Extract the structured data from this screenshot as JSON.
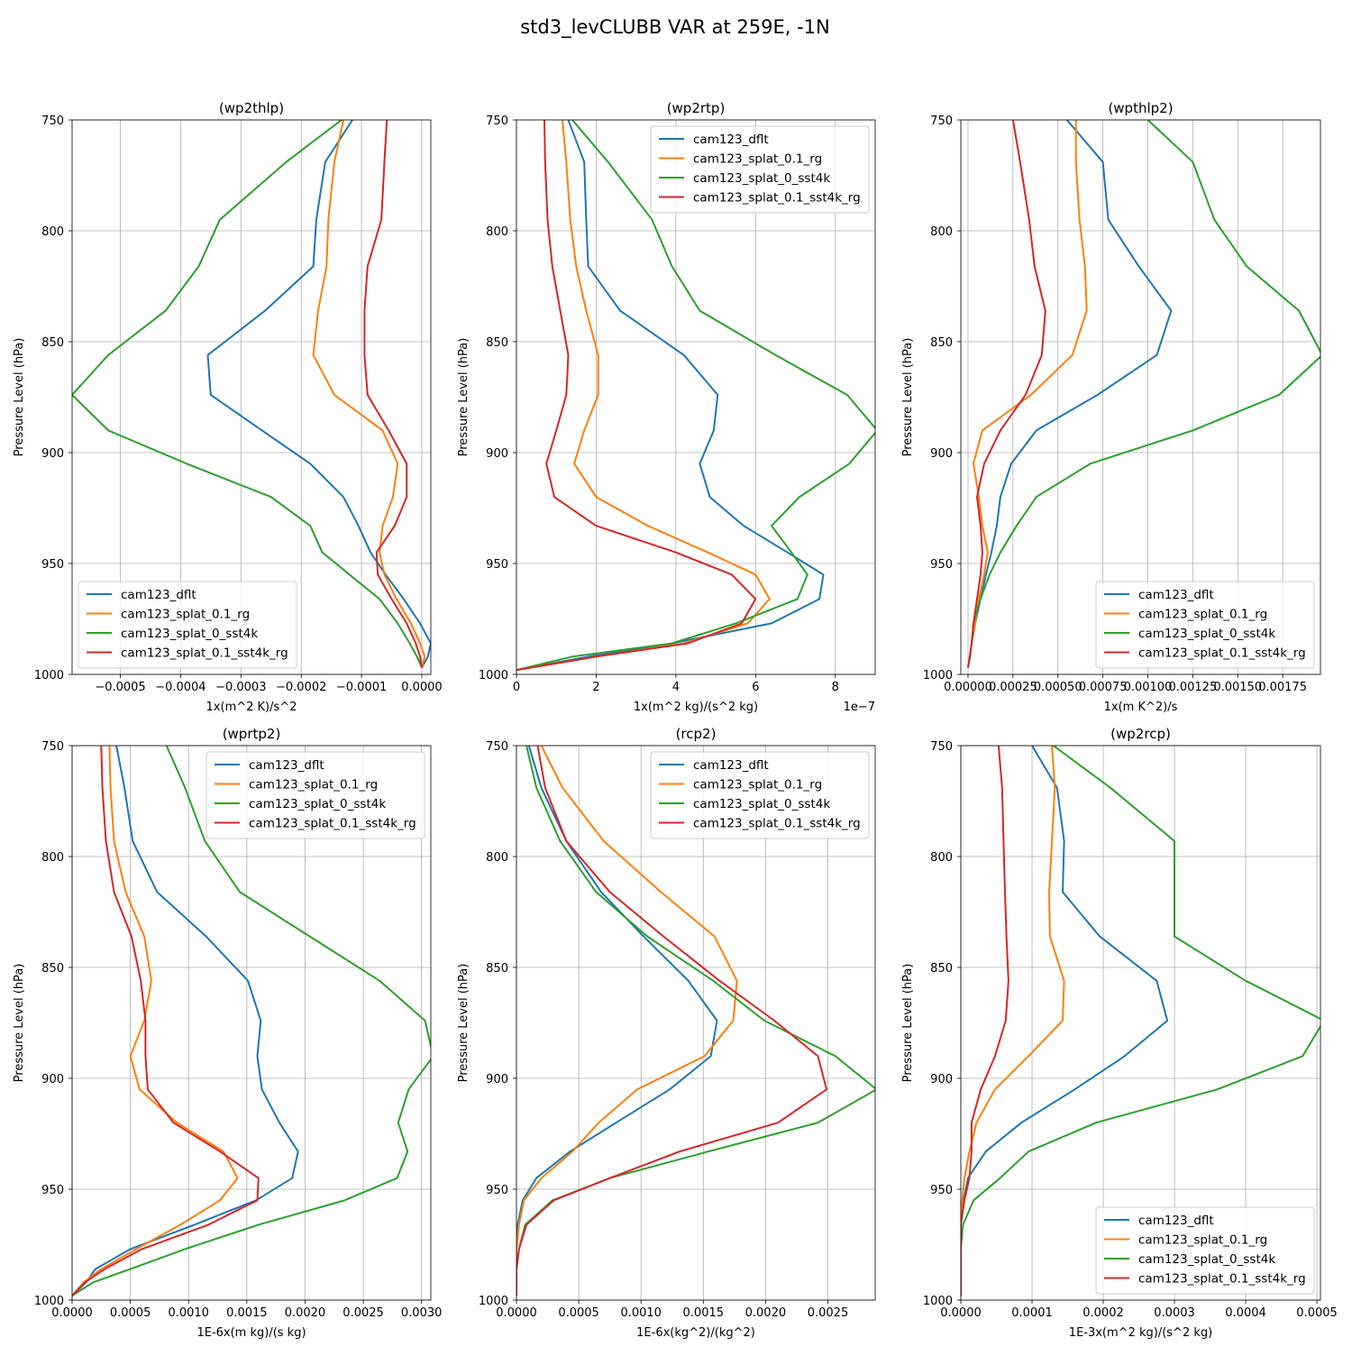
{
  "figure": {
    "title": "std3_levCLUBB VAR at 259E, -1N"
  },
  "chart_data": [
    {
      "type": "line",
      "title": "(wp2thlp)",
      "xlabel": "1x(m^2 K)/s^2",
      "ylabel": "Pressure Level (hPa)",
      "xlim": [
        -0.00058,
        1.5e-05
      ],
      "ylim": [
        1000,
        750
      ],
      "xticks": [
        -0.0005,
        -0.0004,
        -0.0003,
        -0.0002,
        -0.0001,
        0.0
      ],
      "xtick_labels": [
        "−0.0005",
        "−0.0004",
        "−0.0003",
        "−0.0002",
        "−0.0001",
        "0.0000"
      ],
      "yticks": [
        750,
        800,
        850,
        900,
        950,
        1000
      ],
      "ytick_labels": [
        "750",
        "800",
        "850",
        "900",
        "950",
        "1000"
      ],
      "offset_label": "",
      "legend_loc": "lower-left",
      "levels": [
        750,
        769,
        795,
        816,
        836,
        856,
        874,
        890,
        905,
        920,
        933,
        945,
        955,
        966,
        977,
        986,
        992,
        997
      ],
      "series": [
        {
          "name": "cam123_dflt",
          "color": "#1f77b4",
          "values": [
            -0.000115,
            -0.00016,
            -0.000175,
            -0.00018,
            -0.00026,
            -0.000355,
            -0.00035,
            -0.000265,
            -0.000185,
            -0.00013,
            -0.000105,
            -8.5e-05,
            -6e-05,
            -3e-05,
            -3e-06,
            1.5e-05,
            1e-05,
            0.0
          ]
        },
        {
          "name": "cam123_splat_0.1_rg",
          "color": "#ff7f0e",
          "values": [
            -0.00013,
            -0.000145,
            -0.000155,
            -0.000158,
            -0.000172,
            -0.00018,
            -0.000145,
            -6.5e-05,
            -4e-05,
            -4.8e-05,
            -6.5e-05,
            -7e-05,
            -6.2e-05,
            -4.2e-05,
            -1.8e-05,
            -3e-06,
            5e-06,
            0.0
          ]
        },
        {
          "name": "cam123_splat_0_sst4k",
          "color": "#2ca02c",
          "values": [
            -0.000133,
            -0.000225,
            -0.000335,
            -0.00037,
            -0.000425,
            -0.00052,
            -0.00058,
            -0.00052,
            -0.00039,
            -0.00025,
            -0.000185,
            -0.000165,
            -0.00012,
            -7e-05,
            -4e-05,
            -2e-05,
            -8e-06,
            0.0
          ]
        },
        {
          "name": "cam123_splat_0.1_sst4k_rg",
          "color": "#d62728",
          "values": [
            -5.8e-05,
            -6.2e-05,
            -6.7e-05,
            -9e-05,
            -9.5e-05,
            -9.5e-05,
            -9e-05,
            -5.5e-05,
            -2.5e-05,
            -2.5e-05,
            -4.5e-05,
            -7.5e-05,
            -7.3e-05,
            -5e-05,
            -2.5e-05,
            -1e-05,
            -3e-06,
            0.0
          ]
        }
      ]
    },
    {
      "type": "line",
      "title": "(wp2rtp)",
      "xlabel": "1x(m^2 kg)/(s^2 kg)",
      "ylabel": "Pressure Level (hPa)",
      "xlim": [
        0,
        9
      ],
      "ylim": [
        1000,
        750
      ],
      "xticks": [
        0,
        2,
        4,
        6,
        8
      ],
      "xtick_labels": [
        "0",
        "2",
        "4",
        "6",
        "8"
      ],
      "yticks": [
        750,
        800,
        850,
        900,
        950,
        1000
      ],
      "ytick_labels": [
        "750",
        "800",
        "850",
        "900",
        "950",
        "1000"
      ],
      "offset_label": "1e−7",
      "legend_loc": "upper-right",
      "levels": [
        750,
        769,
        795,
        816,
        836,
        856,
        874,
        890,
        905,
        920,
        933,
        945,
        955,
        966,
        977,
        986,
        992,
        998
      ],
      "series": [
        {
          "name": "cam123_dflt",
          "color": "#1f77b4",
          "values": [
            1.3,
            1.7,
            1.75,
            1.8,
            2.6,
            4.2,
            5.05,
            4.95,
            4.6,
            4.85,
            5.7,
            6.8,
            7.7,
            7.6,
            6.4,
            3.9,
            1.8,
            0.0
          ]
        },
        {
          "name": "cam123_splat_0.1_rg",
          "color": "#ff7f0e",
          "values": [
            1.15,
            1.25,
            1.35,
            1.5,
            1.75,
            2.05,
            2.05,
            1.7,
            1.45,
            2.0,
            3.3,
            4.8,
            6.0,
            6.35,
            5.8,
            4.2,
            2.0,
            0.0
          ]
        },
        {
          "name": "cam123_splat_0_sst4k",
          "color": "#2ca02c",
          "values": [
            1.4,
            2.3,
            3.4,
            3.9,
            4.6,
            6.5,
            8.3,
            9.05,
            8.35,
            7.1,
            6.4,
            6.9,
            7.3,
            7.05,
            5.5,
            3.9,
            1.4,
            0.0
          ]
        },
        {
          "name": "cam123_splat_0.1_sst4k_rg",
          "color": "#d62728",
          "values": [
            0.7,
            0.72,
            0.78,
            0.9,
            1.1,
            1.3,
            1.25,
            1.0,
            0.75,
            0.95,
            2.0,
            4.0,
            5.4,
            6.0,
            5.65,
            4.3,
            2.0,
            0.0
          ]
        }
      ]
    },
    {
      "type": "line",
      "title": "(wpthlp2)",
      "xlabel": "1x(m K^2)/s",
      "ylabel": "Pressure Level (hPa)",
      "xlim": [
        -4e-05,
        0.00196
      ],
      "ylim": [
        1000,
        750
      ],
      "xticks": [
        0.0,
        0.00025,
        0.0005,
        0.00075,
        0.001,
        0.00125,
        0.0015,
        0.00175
      ],
      "xtick_labels": [
        "0.00000",
        "0.00025",
        "0.00050",
        "0.00075",
        "0.00100",
        "0.00125",
        "0.00150",
        "0.00175"
      ],
      "yticks": [
        750,
        800,
        850,
        900,
        950,
        1000
      ],
      "ytick_labels": [
        "750",
        "800",
        "850",
        "900",
        "950",
        "1000"
      ],
      "offset_label": "",
      "legend_loc": "lower-right",
      "levels": [
        750,
        769,
        795,
        816,
        836,
        856,
        874,
        890,
        905,
        920,
        933,
        945,
        955,
        966,
        977,
        986,
        992,
        997
      ],
      "series": [
        {
          "name": "cam123_dflt",
          "color": "#1f77b4",
          "values": [
            0.00055,
            0.00075,
            0.00078,
            0.00095,
            0.00113,
            0.00105,
            0.00072,
            0.00038,
            0.00024,
            0.00018,
            0.00016,
            0.00013,
            0.0001,
            7e-05,
            4e-05,
            2e-05,
            1e-05,
            0.0
          ]
        },
        {
          "name": "cam123_splat_0.1_rg",
          "color": "#ff7f0e",
          "values": [
            0.0006,
            0.0006,
            0.00062,
            0.00065,
            0.00066,
            0.00058,
            0.00035,
            8e-05,
            3e-05,
            6e-05,
            8e-05,
            0.00011,
            9e-05,
            6e-05,
            4e-05,
            2e-05,
            1e-05,
            0.0
          ]
        },
        {
          "name": "cam123_splat_0_sst4k",
          "color": "#2ca02c",
          "values": [
            0.001,
            0.00125,
            0.00137,
            0.00155,
            0.00184,
            0.00197,
            0.00173,
            0.00125,
            0.00068,
            0.00038,
            0.00027,
            0.00018,
            0.00012,
            7e-05,
            3e-05,
            2e-05,
            1e-05,
            0.0
          ]
        },
        {
          "name": "cam123_splat_0.1_sst4k_rg",
          "color": "#d62728",
          "values": [
            0.00025,
            0.00029,
            0.00034,
            0.00037,
            0.00043,
            0.00041,
            0.00032,
            0.00018,
            9e-05,
            5e-05,
            7e-05,
            8e-05,
            7e-05,
            5e-05,
            3e-05,
            2e-05,
            1e-05,
            0.0
          ]
        }
      ]
    },
    {
      "type": "line",
      "title": "(wprtp2)",
      "xlabel": "1E-6x(m kg)/(s kg)",
      "ylabel": "Pressure Level (hPa)",
      "xlim": [
        0,
        0.00308
      ],
      "ylim": [
        1000,
        750
      ],
      "xticks": [
        0.0,
        0.0005,
        0.001,
        0.0015,
        0.002,
        0.0025,
        0.003
      ],
      "xtick_labels": [
        "0.0000",
        "0.0005",
        "0.0010",
        "0.0015",
        "0.0020",
        "0.0025",
        "0.0030"
      ],
      "yticks": [
        750,
        800,
        850,
        900,
        950,
        1000
      ],
      "ytick_labels": [
        "750",
        "800",
        "850",
        "900",
        "950",
        "1000"
      ],
      "offset_label": "",
      "legend_loc": "upper-right",
      "levels": [
        750,
        769,
        793,
        816,
        836,
        856,
        874,
        890,
        905,
        920,
        933,
        945,
        955,
        966,
        977,
        986,
        992,
        998
      ],
      "series": [
        {
          "name": "cam123_dflt",
          "color": "#1f77b4",
          "values": [
            0.00038,
            0.00045,
            0.00052,
            0.00073,
            0.00115,
            0.00151,
            0.00162,
            0.00159,
            0.00163,
            0.00178,
            0.00194,
            0.00189,
            0.00158,
            0.00105,
            0.0005,
            0.0002,
            0.00012,
            0.0
          ]
        },
        {
          "name": "cam123_splat_0.1_rg",
          "color": "#ff7f0e",
          "values": [
            0.00032,
            0.00033,
            0.00036,
            0.00046,
            0.00062,
            0.00068,
            0.00062,
            0.0005,
            0.00058,
            0.0009,
            0.0013,
            0.00142,
            0.00127,
            0.00093,
            0.00055,
            0.00025,
            0.0001,
            0.0
          ]
        },
        {
          "name": "cam123_splat_0_sst4k",
          "color": "#2ca02c",
          "values": [
            0.00081,
            0.00097,
            0.00114,
            0.00144,
            0.00204,
            0.00264,
            0.00303,
            0.0031,
            0.00289,
            0.0028,
            0.00288,
            0.00279,
            0.00234,
            0.0016,
            0.00097,
            0.0005,
            0.00018,
            0.0
          ]
        },
        {
          "name": "cam123_splat_0.1_sst4k_rg",
          "color": "#d62728",
          "values": [
            0.00025,
            0.00026,
            0.00029,
            0.00036,
            0.00051,
            0.00059,
            0.00063,
            0.00063,
            0.00065,
            0.00087,
            0.00127,
            0.0016,
            0.00159,
            0.00117,
            0.0006,
            0.00028,
            0.00011,
            0.0
          ]
        }
      ]
    },
    {
      "type": "line",
      "title": "(rcp2)",
      "xlabel": "1E-6x(kg^2)/(kg^2)",
      "ylabel": "Pressure Level (hPa)",
      "xlim": [
        0,
        0.00288
      ],
      "ylim": [
        1000,
        750
      ],
      "xticks": [
        0.0,
        0.0005,
        0.001,
        0.0015,
        0.002,
        0.0025
      ],
      "xtick_labels": [
        "0.0000",
        "0.0005",
        "0.0010",
        "0.0015",
        "0.0020",
        "0.0025"
      ],
      "yticks": [
        750,
        800,
        850,
        900,
        950,
        1000
      ],
      "ytick_labels": [
        "750",
        "800",
        "850",
        "900",
        "950",
        "1000"
      ],
      "offset_label": "",
      "legend_loc": "upper-right",
      "levels": [
        750,
        769,
        793,
        816,
        836,
        856,
        874,
        890,
        905,
        920,
        933,
        945,
        955,
        966,
        977,
        986,
        992,
        998
      ],
      "series": [
        {
          "name": "cam123_dflt",
          "color": "#1f77b4",
          "values": [
            0.0001,
            0.0002,
            0.0004,
            0.00068,
            0.00102,
            0.00138,
            0.00161,
            0.00156,
            0.00123,
            0.0008,
            0.00043,
            0.00016,
            5e-05,
            1e-05,
            0.0,
            0.0,
            0.0,
            0.0
          ]
        },
        {
          "name": "cam123_splat_0.1_rg",
          "color": "#ff7f0e",
          "values": [
            0.0002,
            0.00037,
            0.0007,
            0.00116,
            0.00159,
            0.00177,
            0.00174,
            0.00151,
            0.00097,
            0.00066,
            0.00045,
            0.0002,
            6e-05,
            2e-05,
            0.0,
            0.0,
            0.0,
            0.0
          ]
        },
        {
          "name": "cam123_splat_0_sst4k",
          "color": "#2ca02c",
          "values": [
            8e-05,
            0.00016,
            0.00035,
            0.00064,
            0.00105,
            0.00158,
            0.00199,
            0.00256,
            0.00289,
            0.00242,
            0.00154,
            0.00075,
            0.00029,
            7e-05,
            2e-05,
            0.0,
            0.0,
            0.0
          ]
        },
        {
          "name": "cam123_splat_0.1_sst4k_rg",
          "color": "#d62728",
          "values": [
            0.00017,
            0.00023,
            0.0004,
            0.00075,
            0.00118,
            0.00163,
            0.00207,
            0.00242,
            0.00249,
            0.0021,
            0.00131,
            0.00075,
            0.0003,
            8e-05,
            2e-05,
            0.0,
            0.0,
            0.0
          ]
        }
      ]
    },
    {
      "type": "line",
      "title": "(wp2rcp)",
      "xlabel": "1E-3x(m^2 kg)/(s^2 kg)",
      "ylabel": "Pressure Level (hPa)",
      "xlim": [
        0,
        0.000505
      ],
      "ylim": [
        1000,
        750
      ],
      "xticks": [
        0.0,
        0.0001,
        0.0002,
        0.0003,
        0.0004,
        0.0005
      ],
      "xtick_labels": [
        "0.0000",
        "0.0001",
        "0.0002",
        "0.0003",
        "0.0004",
        "0.0005"
      ],
      "yticks": [
        750,
        800,
        850,
        900,
        950,
        1000
      ],
      "ytick_labels": [
        "750",
        "800",
        "850",
        "900",
        "950",
        "1000"
      ],
      "offset_label": "",
      "legend_loc": "lower-right",
      "levels": [
        750,
        769,
        793,
        816,
        836,
        856,
        874,
        890,
        905,
        920,
        933,
        945,
        955,
        966,
        977,
        986,
        992,
        998
      ],
      "series": [
        {
          "name": "cam123_dflt",
          "color": "#1f77b4",
          "values": [
            0.0001,
            0.000135,
            0.000145,
            0.000143,
            0.000195,
            0.000275,
            0.00029,
            0.00023,
            0.00016,
            8.5e-05,
            3.5e-05,
            1e-05,
            4e-06,
            0.0,
            0.0,
            0.0,
            0.0,
            0.0
          ]
        },
        {
          "name": "cam123_splat_0.1_rg",
          "color": "#ff7f0e",
          "values": [
            0.000128,
            0.000132,
            0.000128,
            0.000124,
            0.000125,
            0.000145,
            0.000143,
            9.5e-05,
            4.8e-05,
            2.2e-05,
            1.2e-05,
            5e-06,
            2e-06,
            0.0,
            0.0,
            0.0,
            0.0,
            0.0
          ]
        },
        {
          "name": "cam123_splat_0_sst4k",
          "color": "#2ca02c",
          "values": [
            0.00013,
            0.00021,
            0.0003,
            0.0003,
            0.0003,
            0.0004,
            0.00051,
            0.00048,
            0.00036,
            0.00019,
            9.5e-05,
            5.5e-05,
            1.8e-05,
            3e-06,
            0.0,
            0.0,
            0.0,
            0.0
          ]
        },
        {
          "name": "cam123_splat_0.1_sst4k_rg",
          "color": "#d62728",
          "values": [
            5.3e-05,
            5.8e-05,
            6e-05,
            6.2e-05,
            6.4e-05,
            6.7e-05,
            6.3e-05,
            4.8e-05,
            2.8e-05,
            1.5e-05,
            1.5e-05,
            1.2e-05,
            5e-06,
            0.0,
            0.0,
            0.0,
            0.0,
            0.0
          ]
        }
      ]
    }
  ]
}
